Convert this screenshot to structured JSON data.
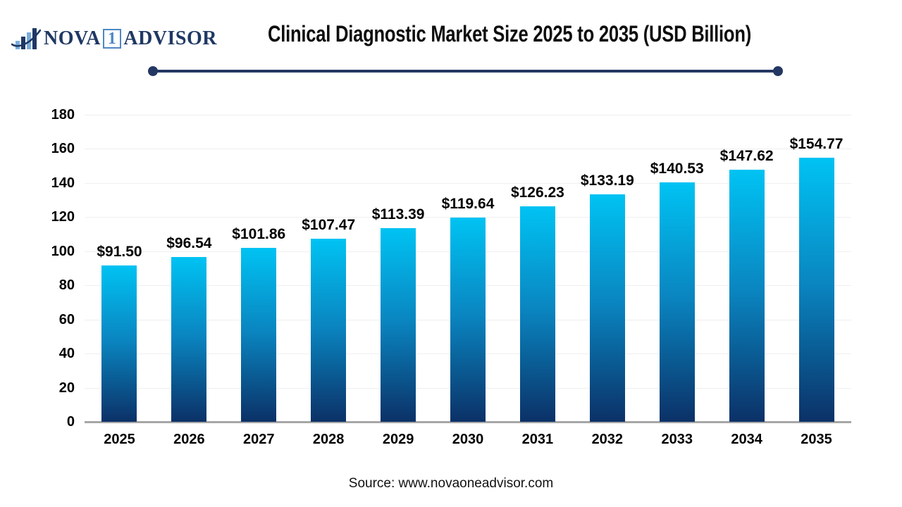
{
  "header": {
    "logo": {
      "text_nova": "NOVA",
      "text_one": "1",
      "text_advisor": "ADVISOR"
    },
    "title": "Clinical Diagnostic Market Size 2025 to 2035 (USD Billion)"
  },
  "chart_data": {
    "type": "bar",
    "title": "Clinical Diagnostic Market Size 2025 to 2035 (USD Billion)",
    "categories": [
      "2025",
      "2026",
      "2027",
      "2028",
      "2029",
      "2030",
      "2031",
      "2032",
      "2033",
      "2034",
      "2035"
    ],
    "values": [
      91.5,
      96.54,
      101.86,
      107.47,
      113.39,
      119.64,
      126.23,
      133.19,
      140.53,
      147.62,
      154.77
    ],
    "data_labels": [
      "$91.50",
      "$96.54",
      "$101.86",
      "$107.47",
      "$113.39",
      "$119.64",
      "$126.23",
      "$133.19",
      "$140.53",
      "$147.62",
      "$154.77"
    ],
    "xlabel": "",
    "ylabel": "",
    "ylim": [
      0,
      180
    ],
    "ytick_interval": 20,
    "grid": true,
    "legend": "none"
  },
  "footer": {
    "source": "Source: www.novaoneadvisor.com"
  },
  "colors": {
    "navy_accent": "#243763",
    "logo_navy": "#1f3864",
    "logo_light_blue": "#4d87c6",
    "icon_light_blue": "#7aaede",
    "bar_gradient_top": "#00c3f3",
    "bar_gradient_mid": "#0a85c0",
    "bar_gradient_bottom": "#0b3167",
    "gridline": "#efefef",
    "axis_line": "#a6a6a6",
    "title_text": "#0d0d0d",
    "label_text": "#000000"
  }
}
